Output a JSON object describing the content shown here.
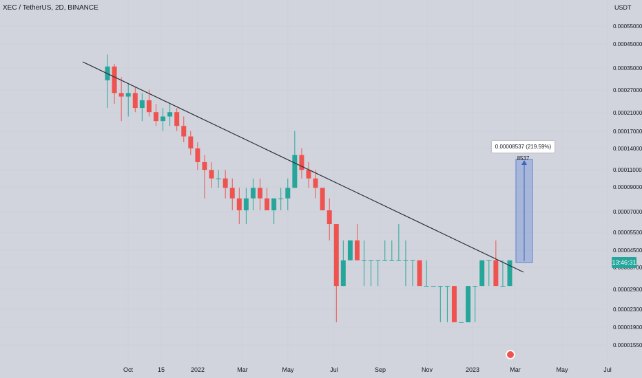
{
  "header": {
    "symbol_title": "XEC / TetherUS, 2D, BINANCE"
  },
  "colors": {
    "background": "#d1d4dc",
    "up": "#26a69a",
    "down": "#ef5350",
    "trendline": "#2a2e39",
    "measure_fill": "#5b7fd6",
    "price_tag": "#26a69a"
  },
  "chart_data": {
    "type": "candlestick",
    "y_scale": "log",
    "y_unit": "USDT",
    "y_ticks": [
      "0.00055000",
      "0.00045000",
      "0.00035000",
      "0.00027000",
      "0.00021000",
      "0.00017000",
      "0.00014000",
      "0.00011000",
      "0.00009000",
      "0.00007000",
      "0.00005500",
      "0.00004500",
      "0.00003700",
      "0.00002900",
      "0.00002300",
      "0.00001900",
      "0.00001550"
    ],
    "x_ticks": [
      "Oct",
      "15",
      "2022",
      "Mar",
      "May",
      "Jul",
      "Sep",
      "Nov",
      "2023",
      "Mar",
      "May",
      "Jul"
    ],
    "price_axis_label": "13:46:31",
    "measure_label": "0.00008537 (219.59%) 8537",
    "trendline": {
      "from": "Aug 2021",
      "to": "Feb 2023"
    },
    "ohlc_approx": [
      [
        0.0003,
        0.0004,
        0.00022,
        0.00035
      ],
      [
        0.00035,
        0.00036,
        0.00023,
        0.00026
      ],
      [
        0.00026,
        0.00031,
        0.00019,
        0.00025
      ],
      [
        0.00025,
        0.00029,
        0.0002,
        0.00026
      ],
      [
        0.00026,
        0.00028,
        0.00021,
        0.00022
      ],
      [
        0.00022,
        0.00026,
        0.00019,
        0.00024
      ],
      [
        0.00024,
        0.00027,
        0.0002,
        0.00021
      ],
      [
        0.00021,
        0.00023,
        0.00018,
        0.00019
      ],
      [
        0.00019,
        0.00022,
        0.00017,
        0.0002
      ],
      [
        0.0002,
        0.00023,
        0.00018,
        0.00021
      ],
      [
        0.00021,
        0.00022,
        0.00017,
        0.00018
      ],
      [
        0.00018,
        0.0002,
        0.00015,
        0.00016
      ],
      [
        0.00016,
        0.00017,
        0.00013,
        0.00014
      ],
      [
        0.00014,
        0.00015,
        0.00011,
        0.00012
      ],
      [
        0.00012,
        0.00013,
        8e-05,
        0.00011
      ],
      [
        0.00011,
        0.00012,
        9e-05,
        0.0001
      ],
      [
        0.0001,
        0.00011,
        9e-05,
        0.0001
      ],
      [
        0.0001,
        0.00011,
        8e-05,
        9e-05
      ],
      [
        9e-05,
        0.0001,
        7e-05,
        8e-05
      ],
      [
        8e-05,
        9e-05,
        6e-05,
        7e-05
      ],
      [
        7e-05,
        9e-05,
        6e-05,
        8e-05
      ],
      [
        8e-05,
        0.0001,
        7e-05,
        9e-05
      ],
      [
        9e-05,
        0.0001,
        7e-05,
        8e-05
      ],
      [
        8e-05,
        9e-05,
        7e-05,
        7e-05
      ],
      [
        7e-05,
        8e-05,
        6e-05,
        8e-05
      ],
      [
        8e-05,
        9e-05,
        7e-05,
        8e-05
      ],
      [
        8e-05,
        0.0001,
        7e-05,
        9e-05
      ],
      [
        9e-05,
        0.00017,
        9e-05,
        0.00013
      ],
      [
        0.00013,
        0.00014,
        0.0001,
        0.00011
      ],
      [
        0.00011,
        0.00012,
        9e-05,
        0.0001
      ],
      [
        0.0001,
        0.00011,
        8e-05,
        9e-05
      ],
      [
        9e-05,
        9e-05,
        7e-05,
        7e-05
      ],
      [
        7e-05,
        8e-05,
        5e-05,
        6e-05
      ],
      [
        6e-05,
        6e-05,
        2e-05,
        3e-05
      ],
      [
        3e-05,
        5e-05,
        3e-05,
        4e-05
      ],
      [
        4e-05,
        5e-05,
        4e-05,
        5e-05
      ],
      [
        5e-05,
        6e-05,
        4e-05,
        4e-05
      ],
      [
        4e-05,
        5e-05,
        3e-05,
        4e-05
      ],
      [
        4e-05,
        4e-05,
        3e-05,
        4e-05
      ],
      [
        4e-05,
        4e-05,
        3e-05,
        4e-05
      ],
      [
        4e-05,
        5e-05,
        4e-05,
        4e-05
      ],
      [
        4e-05,
        5e-05,
        4e-05,
        4e-05
      ],
      [
        4e-05,
        6e-05,
        4e-05,
        4e-05
      ],
      [
        4e-05,
        5e-05,
        3e-05,
        4e-05
      ],
      [
        4e-05,
        4e-05,
        3e-05,
        4e-05
      ],
      [
        4e-05,
        4e-05,
        3e-05,
        3e-05
      ],
      [
        3e-05,
        4e-05,
        3e-05,
        3e-05
      ],
      [
        3e-05,
        3e-05,
        3e-05,
        3e-05
      ],
      [
        3e-05,
        3e-05,
        2e-05,
        3e-05
      ],
      [
        3e-05,
        3e-05,
        2e-05,
        3e-05
      ],
      [
        3e-05,
        3e-05,
        2e-05,
        2e-05
      ],
      [
        2e-05,
        2e-05,
        2e-05,
        2e-05
      ],
      [
        2e-05,
        3e-05,
        2e-05,
        3e-05
      ],
      [
        3e-05,
        3e-05,
        2e-05,
        3e-05
      ],
      [
        3e-05,
        4e-05,
        3e-05,
        4e-05
      ],
      [
        4e-05,
        4e-05,
        3e-05,
        4e-05
      ],
      [
        4e-05,
        5e-05,
        3e-05,
        3e-05
      ],
      [
        3e-05,
        4e-05,
        3e-05,
        3e-05
      ],
      [
        3e-05,
        4e-05,
        3e-05,
        4e-05
      ]
    ]
  }
}
